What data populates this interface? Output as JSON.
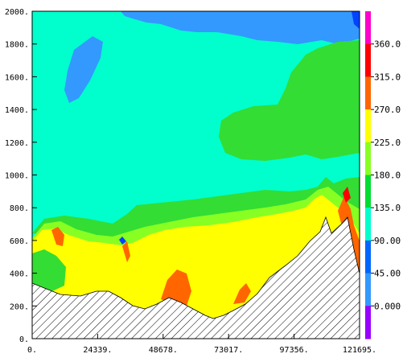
{
  "chart_data": {
    "type": "heatmap",
    "title": "",
    "xlabel": "",
    "ylabel": "",
    "x_ticks": [
      "0.",
      "24339.",
      "48678.",
      "73017.",
      "97356.",
      "121695."
    ],
    "y_ticks": [
      "0.",
      "200.",
      "400.",
      "600.",
      "800.",
      "1000.",
      "1200.",
      "1400.",
      "1600.",
      "1800.",
      "2000."
    ],
    "xlim": [
      0,
      121695
    ],
    "ylim": [
      0,
      2000
    ],
    "colorbar": {
      "labels": [
        "0.000",
        "45.00",
        "90.00",
        "135.0",
        "180.0",
        "225.0",
        "270.0",
        "315.0",
        "360.0"
      ],
      "bands": [
        "#9900ff",
        "#3399ff",
        "#0066ff",
        "#00ffcc",
        "#00dd33",
        "#88ff22",
        "#ffff00",
        "#ff6600",
        "#ff0000",
        "#ff00cc"
      ]
    },
    "fields": [
      {
        "name": "sky",
        "color": "#00ffcc"
      },
      {
        "name": "upper-blue",
        "color": "#3399ff"
      },
      {
        "name": "green-band",
        "color": "#33dd33"
      },
      {
        "name": "light-green",
        "color": "#88ff22"
      },
      {
        "name": "yellow",
        "color": "#ffff00"
      },
      {
        "name": "orange",
        "color": "#ff6600"
      },
      {
        "name": "red",
        "color": "#ff0000"
      },
      {
        "name": "terrain",
        "color": "#ffffff"
      }
    ]
  }
}
